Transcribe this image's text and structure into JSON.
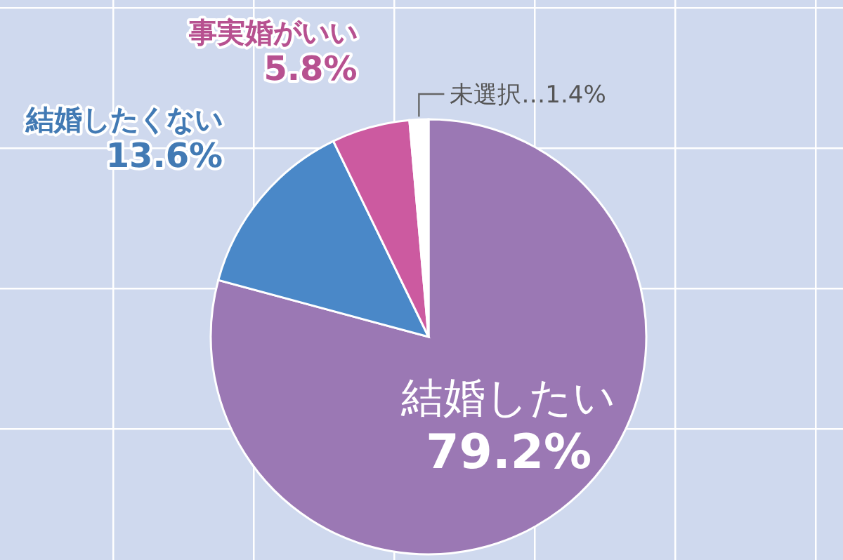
{
  "chart_data": {
    "type": "pie",
    "categories": [
      "結婚したい",
      "結婚したくない",
      "事実婚がいい",
      "未選択"
    ],
    "values": [
      79.2,
      13.6,
      5.8,
      1.4
    ],
    "value_labels": [
      "79.2%",
      "13.6%",
      "5.8%",
      "…1.4%"
    ],
    "colors": [
      "#9b78b4",
      "#4a88c8",
      "#cc5aa0",
      "#ffffff"
    ]
  }
}
